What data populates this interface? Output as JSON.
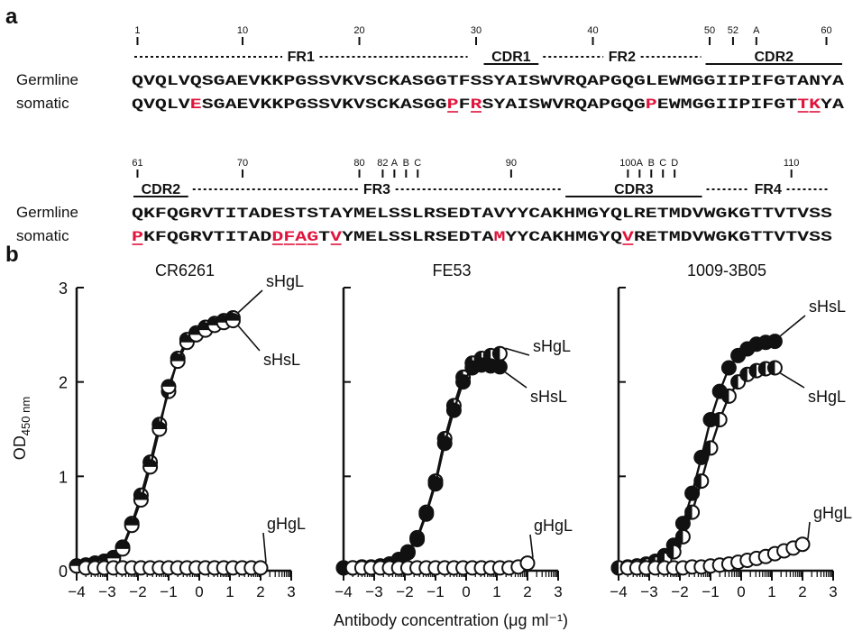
{
  "panel_a": {
    "label": "a",
    "rows": [
      {
        "germline_label": "Germline",
        "somatic_label": "somatic",
        "germline": "QVQLVQSGAEVKKPGSSVKVSCKASGGTFSSYAISWVRQAPGQGLEWMGGIIPIFGTANYA",
        "somatic": "QVQLVESGAEVKKPGSSVKVSCKASGGPFRSYAISWVRQAPGQGPEWMGGIIPIFGTTKYA",
        "mutations": [
          5,
          27,
          29,
          44,
          57,
          58
        ],
        "underlined": [
          27,
          29,
          57,
          58
        ],
        "numbers": [
          {
            "text": "1",
            "pos": 0
          },
          {
            "text": "10",
            "pos": 9
          },
          {
            "text": "20",
            "pos": 19
          },
          {
            "text": "30",
            "pos": 29
          },
          {
            "text": "40",
            "pos": 39
          },
          {
            "text": "50",
            "pos": 49
          },
          {
            "text": "52",
            "pos": 51
          },
          {
            "text": "A",
            "pos": 53
          },
          {
            "text": "60",
            "pos": 59
          }
        ],
        "ticks": [
          0,
          9,
          19,
          29,
          39,
          49,
          51,
          53,
          59
        ],
        "regions": [
          {
            "name": "FR1",
            "type": "FR",
            "start": 0,
            "end": 29
          },
          {
            "name": "CDR1",
            "type": "CDR",
            "start": 30,
            "end": 35
          },
          {
            "name": "FR2",
            "type": "FR",
            "start": 35,
            "end": 49
          },
          {
            "name": "CDR2",
            "type": "CDR",
            "start": 49,
            "end": 61
          }
        ]
      },
      {
        "germline_label": "Germline",
        "somatic_label": "somatic",
        "germline": "QKFQGRVTITADESTSTAYMELSSLRSEDTAVYYCAKHMGYQLRETMDVWGKGTTVTVSS",
        "somatic": "PKFQGRVTITADDFAGTVYMELSSLRSEDTAMYYCAKHMGYQVRETMDVWGKGTTVTVSS",
        "mutations": [
          0,
          12,
          13,
          14,
          15,
          17,
          31,
          42
        ],
        "underlined": [
          0,
          12,
          13,
          14,
          15,
          17,
          42
        ],
        "numbers": [
          {
            "text": "61",
            "pos": 0
          },
          {
            "text": "70",
            "pos": 9
          },
          {
            "text": "80",
            "pos": 19
          },
          {
            "text": "82",
            "pos": 21
          },
          {
            "text": "A",
            "pos": 22
          },
          {
            "text": "B",
            "pos": 23
          },
          {
            "text": "C",
            "pos": 24
          },
          {
            "text": "90",
            "pos": 32
          },
          {
            "text": "100",
            "pos": 42
          },
          {
            "text": "A",
            "pos": 43
          },
          {
            "text": "B",
            "pos": 44
          },
          {
            "text": "C",
            "pos": 45
          },
          {
            "text": "D",
            "pos": 46
          },
          {
            "text": "110",
            "pos": 56
          }
        ],
        "ticks": [
          0,
          9,
          19,
          21,
          22,
          23,
          24,
          32,
          42,
          43,
          44,
          45,
          46,
          56
        ],
        "regions": [
          {
            "name": "CDR2",
            "type": "CDR",
            "start": 0,
            "end": 5
          },
          {
            "name": "FR3",
            "type": "FR",
            "start": 5,
            "end": 37
          },
          {
            "name": "CDR3",
            "type": "CDR",
            "start": 37,
            "end": 49
          },
          {
            "name": "FR4",
            "type": "FR",
            "start": 49,
            "end": 60
          }
        ]
      }
    ]
  },
  "panel_b": {
    "label": "b",
    "ylabel_main": "OD",
    "ylabel_sub": "450 nm",
    "xlabel": "Antibody concentration (μg ml⁻¹)"
  },
  "chart_data": [
    {
      "type": "scatter",
      "title": "CR6261",
      "xlim": [
        -4,
        3
      ],
      "ylim": [
        0,
        3
      ],
      "xticks": [
        "−4",
        "−3",
        "−2",
        "−1",
        "0",
        "1",
        "2",
        "3"
      ],
      "yticks": [
        "0",
        "1",
        "2",
        "3"
      ],
      "series": [
        {
          "name": "sHgL",
          "marker": "half-left",
          "x": [
            -4,
            -3.7,
            -3.4,
            -3.1,
            -2.8,
            -2.5,
            -2.2,
            -1.9,
            -1.6,
            -1.3,
            -1,
            -0.7,
            -0.4,
            -0.1,
            0.2,
            0.5,
            0.8,
            1.1
          ],
          "y": [
            0.05,
            0.06,
            0.08,
            0.1,
            0.14,
            0.25,
            0.5,
            0.8,
            1.15,
            1.55,
            1.9,
            2.25,
            2.45,
            2.52,
            2.58,
            2.62,
            2.65,
            2.68
          ]
        },
        {
          "name": "sHsL",
          "marker": "half-top",
          "x": [
            -4,
            -3.7,
            -3.4,
            -3.1,
            -2.8,
            -2.5,
            -2.2,
            -1.9,
            -1.6,
            -1.3,
            -1,
            -0.7,
            -0.4,
            -0.1,
            0.2,
            0.5,
            0.8,
            1.1
          ],
          "y": [
            0.05,
            0.06,
            0.08,
            0.1,
            0.13,
            0.23,
            0.48,
            0.75,
            1.1,
            1.5,
            1.95,
            2.22,
            2.42,
            2.5,
            2.55,
            2.6,
            2.63,
            2.65
          ]
        },
        {
          "name": "gHgL",
          "marker": "open",
          "x": [
            -3.7,
            -3.4,
            -3.1,
            -2.8,
            -2.5,
            -2.2,
            -1.9,
            -1.6,
            -1.3,
            -1,
            -0.7,
            -0.4,
            -0.1,
            0.2,
            0.5,
            0.8,
            1.1,
            1.4,
            1.7,
            2
          ],
          "y": [
            0.03,
            0.03,
            0.03,
            0.03,
            0.03,
            0.03,
            0.03,
            0.03,
            0.03,
            0.03,
            0.03,
            0.03,
            0.03,
            0.03,
            0.03,
            0.03,
            0.03,
            0.03,
            0.03,
            0.03
          ]
        }
      ],
      "annotations": [
        {
          "text": "sHgL",
          "series": "sHgL"
        },
        {
          "text": "sHsL",
          "series": "sHsL"
        },
        {
          "text": "gHgL",
          "series": "gHgL"
        }
      ]
    },
    {
      "type": "scatter",
      "title": "FE53",
      "xlim": [
        -4,
        3
      ],
      "ylim": [
        0,
        3
      ],
      "xticks": [
        "−4",
        "−3",
        "−2",
        "−1",
        "0",
        "1",
        "2",
        "3"
      ],
      "yticks": [
        "0",
        "1",
        "2",
        "3"
      ],
      "series": [
        {
          "name": "sHgL",
          "marker": "half-left",
          "x": [
            -4,
            -3.7,
            -3.4,
            -3.1,
            -2.8,
            -2.5,
            -2.2,
            -1.9,
            -1.6,
            -1.3,
            -1,
            -0.7,
            -0.4,
            -0.1,
            0.2,
            0.5,
            0.8,
            1.1
          ],
          "y": [
            0.03,
            0.03,
            0.04,
            0.04,
            0.05,
            0.07,
            0.12,
            0.2,
            0.35,
            0.62,
            0.95,
            1.4,
            1.75,
            2.05,
            2.2,
            2.25,
            2.28,
            2.3
          ]
        },
        {
          "name": "sHsL",
          "marker": "filled",
          "x": [
            -4,
            -3.7,
            -3.4,
            -3.1,
            -2.8,
            -2.5,
            -2.2,
            -1.9,
            -1.6,
            -1.3,
            -1,
            -0.7,
            -0.4,
            -0.1,
            0.2,
            0.5,
            0.8,
            1.1
          ],
          "y": [
            0.03,
            0.03,
            0.04,
            0.04,
            0.05,
            0.07,
            0.11,
            0.19,
            0.33,
            0.6,
            0.92,
            1.35,
            1.7,
            2.0,
            2.15,
            2.18,
            2.17,
            2.16
          ]
        },
        {
          "name": "gHgL",
          "marker": "open",
          "x": [
            -3.7,
            -3.4,
            -3.1,
            -2.8,
            -2.5,
            -2.2,
            -1.9,
            -1.6,
            -1.3,
            -1,
            -0.7,
            -0.4,
            -0.1,
            0.2,
            0.5,
            0.8,
            1.1,
            1.4,
            1.7,
            2
          ],
          "y": [
            0.03,
            0.03,
            0.03,
            0.03,
            0.03,
            0.03,
            0.03,
            0.03,
            0.03,
            0.03,
            0.03,
            0.03,
            0.03,
            0.03,
            0.03,
            0.03,
            0.03,
            0.03,
            0.04,
            0.08
          ]
        }
      ],
      "annotations": [
        {
          "text": "sHgL",
          "series": "sHgL"
        },
        {
          "text": "sHsL",
          "series": "sHsL"
        },
        {
          "text": "gHgL",
          "series": "gHgL"
        }
      ]
    },
    {
      "type": "scatter",
      "title": "1009-3B05",
      "xlim": [
        -4,
        3
      ],
      "ylim": [
        0,
        3
      ],
      "xticks": [
        "−4",
        "−3",
        "−2",
        "−1",
        "0",
        "1",
        "2",
        "3"
      ],
      "yticks": [
        "0",
        "1",
        "2",
        "3"
      ],
      "series": [
        {
          "name": "sHsL",
          "marker": "filled",
          "x": [
            -4,
            -3.7,
            -3.4,
            -3.1,
            -2.8,
            -2.5,
            -2.2,
            -1.9,
            -1.6,
            -1.3,
            -1,
            -0.7,
            -0.4,
            -0.1,
            0.2,
            0.5,
            0.8,
            1.1
          ],
          "y": [
            0.03,
            0.04,
            0.05,
            0.07,
            0.1,
            0.16,
            0.27,
            0.5,
            0.82,
            1.2,
            1.6,
            1.9,
            2.15,
            2.28,
            2.35,
            2.4,
            2.42,
            2.43
          ]
        },
        {
          "name": "sHgL",
          "marker": "half-left",
          "x": [
            -4,
            -3.7,
            -3.4,
            -3.1,
            -2.8,
            -2.5,
            -2.2,
            -1.9,
            -1.6,
            -1.3,
            -1,
            -0.7,
            -0.4,
            -0.1,
            0.2,
            0.5,
            0.8,
            1.1
          ],
          "y": [
            0.03,
            0.04,
            0.05,
            0.06,
            0.08,
            0.12,
            0.2,
            0.36,
            0.62,
            0.95,
            1.3,
            1.6,
            1.85,
            2.0,
            2.08,
            2.12,
            2.14,
            2.15
          ]
        },
        {
          "name": "gHgL",
          "marker": "open",
          "x": [
            -3.7,
            -3.4,
            -3.1,
            -2.8,
            -2.5,
            -2.2,
            -1.9,
            -1.6,
            -1.3,
            -1,
            -0.7,
            -0.4,
            -0.1,
            0.2,
            0.5,
            0.8,
            1.1,
            1.4,
            1.7,
            2
          ],
          "y": [
            0.03,
            0.03,
            0.03,
            0.03,
            0.03,
            0.03,
            0.03,
            0.04,
            0.04,
            0.05,
            0.06,
            0.07,
            0.09,
            0.11,
            0.13,
            0.15,
            0.18,
            0.21,
            0.24,
            0.28
          ]
        }
      ],
      "annotations": [
        {
          "text": "sHsL",
          "series": "sHsL"
        },
        {
          "text": "sHgL",
          "series": "sHgL"
        },
        {
          "text": "gHgL",
          "series": "gHgL"
        }
      ]
    }
  ]
}
